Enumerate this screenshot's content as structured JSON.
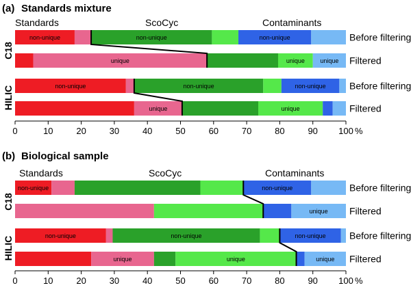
{
  "colors": {
    "standards_nonunique": "#ee1c24",
    "standards_unique": "#e8668f",
    "scocyc_nonunique": "#2aa12a",
    "scocyc_unique": "#55e84a",
    "contaminants_nonunique": "#2f63e6",
    "contaminants_unique": "#77b9f5",
    "connector": "#000000"
  },
  "chart_data": [
    {
      "type": "bar",
      "orientation": "horizontal",
      "stacked": true,
      "title": "Standards mixture",
      "panel_label": "(a)",
      "category_headers": [
        "Standards",
        "ScoCyc",
        "Contaminants"
      ],
      "xlim": [
        0,
        100
      ],
      "xticks": [
        "0",
        "10",
        "20",
        "30",
        "40",
        "50",
        "60",
        "70",
        "80",
        "90",
        "100"
      ],
      "x_unit": "%",
      "groups": [
        {
          "name": "C18",
          "rows": [
            {
              "name": "Before filtering",
              "segments": [
                {
                  "cls": "standards_nonunique",
                  "value": 18,
                  "label": "non-unique"
                },
                {
                  "cls": "standards_unique",
                  "value": 5,
                  "label": ""
                },
                {
                  "cls": "scocyc_nonunique",
                  "value": 36.5,
                  "label": "non-unique"
                },
                {
                  "cls": "scocyc_unique",
                  "value": 8,
                  "label": ""
                },
                {
                  "cls": "contaminants_nonunique",
                  "value": 22,
                  "label": "non-unique"
                },
                {
                  "cls": "contaminants_unique",
                  "value": 10.5,
                  "label": ""
                }
              ]
            },
            {
              "name": "Filtered",
              "segments": [
                {
                  "cls": "standards_nonunique",
                  "value": 5.5,
                  "label": ""
                },
                {
                  "cls": "standards_unique",
                  "value": 52.5,
                  "label": "unique"
                },
                {
                  "cls": "scocyc_nonunique",
                  "value": 21.5,
                  "label": ""
                },
                {
                  "cls": "scocyc_unique",
                  "value": 10.5,
                  "label": "unique"
                },
                {
                  "cls": "contaminants_unique",
                  "value": 10,
                  "label": "unique"
                }
              ]
            }
          ],
          "connector": [
            23,
            58
          ]
        },
        {
          "name": "HILIC",
          "rows": [
            {
              "name": "Before filtering",
              "segments": [
                {
                  "cls": "standards_nonunique",
                  "value": 33.5,
                  "label": "non-unique"
                },
                {
                  "cls": "standards_unique",
                  "value": 2.5,
                  "label": ""
                },
                {
                  "cls": "scocyc_nonunique",
                  "value": 39,
                  "label": "non-unique"
                },
                {
                  "cls": "scocyc_unique",
                  "value": 5.5,
                  "label": ""
                },
                {
                  "cls": "contaminants_nonunique",
                  "value": 17.5,
                  "label": "non-unique"
                },
                {
                  "cls": "contaminants_unique",
                  "value": 2,
                  "label": ""
                }
              ]
            },
            {
              "name": "Filtered",
              "segments": [
                {
                  "cls": "standards_nonunique",
                  "value": 36,
                  "label": ""
                },
                {
                  "cls": "standards_unique",
                  "value": 14.5,
                  "label": "unique"
                },
                {
                  "cls": "scocyc_nonunique",
                  "value": 23,
                  "label": ""
                },
                {
                  "cls": "scocyc_unique",
                  "value": 19.5,
                  "label": "unique"
                },
                {
                  "cls": "contaminants_nonunique",
                  "value": 3,
                  "label": ""
                },
                {
                  "cls": "contaminants_unique",
                  "value": 4,
                  "label": ""
                }
              ]
            }
          ],
          "connector": [
            36,
            50.5
          ]
        }
      ]
    },
    {
      "type": "bar",
      "orientation": "horizontal",
      "stacked": true,
      "title": "Biological sample",
      "panel_label": "(b)",
      "category_headers": [
        "Standards",
        "ScoCyc",
        "Contaminants"
      ],
      "xlim": [
        0,
        100
      ],
      "xticks": [
        "0",
        "10",
        "20",
        "30",
        "40",
        "50",
        "60",
        "70",
        "80",
        "90",
        "100"
      ],
      "x_unit": "%",
      "groups": [
        {
          "name": "C18",
          "rows": [
            {
              "name": "Before filtering",
              "segments": [
                {
                  "cls": "standards_nonunique",
                  "value": 11,
                  "label": "non-unique"
                },
                {
                  "cls": "standards_unique",
                  "value": 7,
                  "label": ""
                },
                {
                  "cls": "scocyc_nonunique",
                  "value": 38,
                  "label": ""
                },
                {
                  "cls": "scocyc_unique",
                  "value": 13,
                  "label": ""
                },
                {
                  "cls": "contaminants_nonunique",
                  "value": 20.5,
                  "label": "non-unique"
                },
                {
                  "cls": "contaminants_unique",
                  "value": 10.5,
                  "label": ""
                }
              ]
            },
            {
              "name": "Filtered",
              "segments": [
                {
                  "cls": "standards_unique",
                  "value": 42,
                  "label": ""
                },
                {
                  "cls": "scocyc_unique",
                  "value": 33,
                  "label": ""
                },
                {
                  "cls": "contaminants_nonunique",
                  "value": 8.5,
                  "label": ""
                },
                {
                  "cls": "contaminants_unique",
                  "value": 16.5,
                  "label": "unique"
                }
              ]
            }
          ],
          "connector": [
            69,
            75
          ]
        },
        {
          "name": "HILIC",
          "rows": [
            {
              "name": "Before filtering",
              "segments": [
                {
                  "cls": "standards_nonunique",
                  "value": 27.5,
                  "label": "non-unique"
                },
                {
                  "cls": "standards_unique",
                  "value": 2,
                  "label": ""
                },
                {
                  "cls": "scocyc_nonunique",
                  "value": 44.5,
                  "label": "non-unique"
                },
                {
                  "cls": "scocyc_unique",
                  "value": 6,
                  "label": ""
                },
                {
                  "cls": "contaminants_nonunique",
                  "value": 18.5,
                  "label": "non-unique"
                },
                {
                  "cls": "contaminants_unique",
                  "value": 1.5,
                  "label": ""
                }
              ]
            },
            {
              "name": "Filtered",
              "segments": [
                {
                  "cls": "standards_nonunique",
                  "value": 23,
                  "label": ""
                },
                {
                  "cls": "standards_unique",
                  "value": 19,
                  "label": "unique"
                },
                {
                  "cls": "scocyc_nonunique",
                  "value": 6.5,
                  "label": ""
                },
                {
                  "cls": "scocyc_unique",
                  "value": 36.5,
                  "label": "unique"
                },
                {
                  "cls": "contaminants_nonunique",
                  "value": 2.5,
                  "label": ""
                },
                {
                  "cls": "contaminants_unique",
                  "value": 12.5,
                  "label": "unique"
                }
              ]
            }
          ],
          "connector": [
            80,
            85
          ]
        }
      ]
    }
  ]
}
